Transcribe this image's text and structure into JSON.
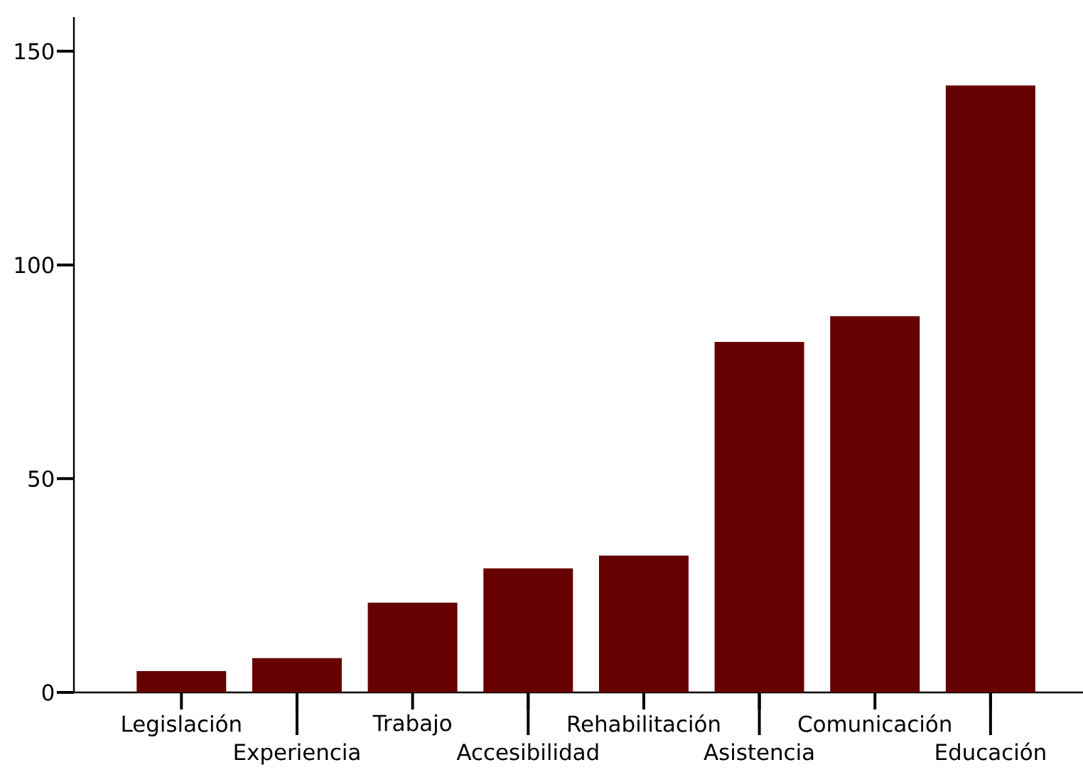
{
  "chart_data": {
    "type": "bar",
    "categories": [
      "Legislación",
      "Experiencia",
      "Trabajo",
      "Accesibilidad",
      "Rehabilitación",
      "Asistencia",
      "Comunicación",
      "Educación"
    ],
    "values": [
      5,
      8,
      21,
      29,
      32,
      82,
      88,
      142
    ],
    "color": "#660000",
    "ylim": [
      0,
      158
    ],
    "yticks": [
      0,
      50,
      100,
      150
    ]
  }
}
